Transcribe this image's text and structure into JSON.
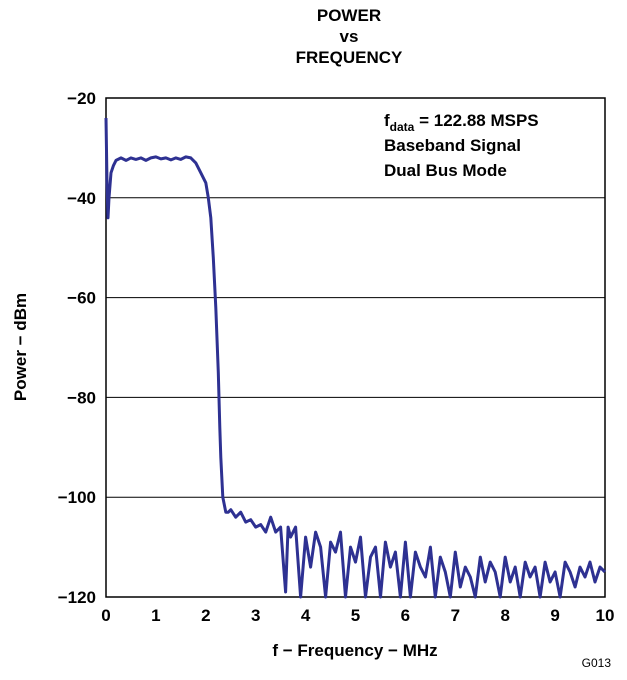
{
  "chart_data": {
    "type": "line",
    "title": [
      "POWER",
      "vs",
      "FREQUENCY"
    ],
    "xlabel": "f − Frequency − MHz",
    "ylabel": "Power − dBm",
    "xlim": [
      0,
      10
    ],
    "ylim": [
      -120,
      -20
    ],
    "x_ticks": [
      "0",
      "1",
      "2",
      "3",
      "4",
      "5",
      "6",
      "7",
      "8",
      "9",
      "10"
    ],
    "y_ticks": [
      "−20",
      "−40",
      "−60",
      "−80",
      "−100",
      "−120"
    ],
    "grid": "horizontal",
    "annotation": {
      "line1_main": "f",
      "line1_sub": "data",
      "line1_rest": " = 122.88 MSPS",
      "line2": "Baseband Signal",
      "line3": "Dual Bus Mode"
    },
    "figure_id": "G013",
    "line_color": "#2e3192",
    "series": [
      {
        "x": [
          0,
          0.02,
          0.04,
          0.06,
          0.1,
          0.15,
          0.2,
          0.3,
          0.4,
          0.5,
          0.6,
          0.7,
          0.8,
          0.9,
          1.0,
          1.1,
          1.2,
          1.3,
          1.4,
          1.5,
          1.6,
          1.7,
          1.8,
          1.9,
          2.0,
          2.05,
          2.1,
          2.15,
          2.2,
          2.25,
          2.28,
          2.3,
          2.32,
          2.34,
          2.36,
          2.38,
          2.4,
          2.45,
          2.5,
          2.6,
          2.7,
          2.8,
          2.9,
          3.0,
          3.1,
          3.2,
          3.3,
          3.4,
          3.5,
          3.6,
          3.65,
          3.7,
          3.8,
          3.9,
          4.0,
          4.1,
          4.2,
          4.3,
          4.4,
          4.5,
          4.6,
          4.7,
          4.8,
          4.9,
          5.0,
          5.1,
          5.2,
          5.3,
          5.4,
          5.5,
          5.6,
          5.7,
          5.8,
          5.9,
          6.0,
          6.1,
          6.2,
          6.3,
          6.4,
          6.5,
          6.6,
          6.7,
          6.8,
          6.9,
          7.0,
          7.1,
          7.2,
          7.3,
          7.4,
          7.5,
          7.6,
          7.7,
          7.8,
          7.9,
          8.0,
          8.1,
          8.2,
          8.3,
          8.4,
          8.5,
          8.6,
          8.7,
          8.8,
          8.9,
          9.0,
          9.1,
          9.2,
          9.3,
          9.4,
          9.5,
          9.6,
          9.7,
          9.8,
          9.9,
          10.0
        ],
        "y": [
          -24,
          -37,
          -44,
          -40,
          -35,
          -33.5,
          -32.5,
          -32,
          -32.5,
          -32,
          -32.3,
          -32,
          -32.5,
          -32,
          -31.8,
          -32.2,
          -32,
          -32.4,
          -32,
          -32.3,
          -31.8,
          -32,
          -33,
          -35,
          -37,
          -40,
          -44,
          -52,
          -62,
          -75,
          -86,
          -92,
          -96,
          -100,
          -101,
          -102,
          -103,
          -103,
          -102.5,
          -104,
          -103,
          -105,
          -104.5,
          -106,
          -105.5,
          -107,
          -104,
          -107,
          -106,
          -119,
          -106,
          -108,
          -106,
          -120,
          -108,
          -114,
          -107,
          -110,
          -120,
          -109,
          -111,
          -107,
          -120,
          -110,
          -113,
          -108,
          -120,
          -112,
          -110,
          -120,
          -109,
          -114,
          -111,
          -120,
          -109,
          -120,
          -111,
          -114,
          -116,
          -110,
          -120,
          -112,
          -115,
          -120,
          -111,
          -118,
          -114,
          -116,
          -120,
          -112,
          -117,
          -113,
          -115,
          -120,
          -112,
          -117,
          -114,
          -120,
          -113,
          -116,
          -114,
          -120,
          -113,
          -117,
          -115,
          -120,
          -113,
          -115,
          -118,
          -114,
          -116,
          -113,
          -117,
          -114,
          -115
        ]
      }
    ]
  }
}
